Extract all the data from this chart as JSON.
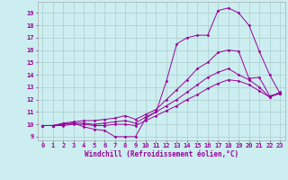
{
  "background_color": "#cceef0",
  "grid_color": "#aacccc",
  "line_color": "#990099",
  "marker_color": "#990099",
  "xlabel": "Windchill (Refroidissement éolien,°C)",
  "ylabel_ticks": [
    9,
    10,
    11,
    12,
    13,
    14,
    15,
    16,
    17,
    18,
    19
  ],
  "xlabel_ticks": [
    0,
    1,
    2,
    3,
    4,
    5,
    6,
    7,
    8,
    9,
    10,
    11,
    12,
    13,
    14,
    15,
    16,
    17,
    18,
    19,
    20,
    21,
    22,
    23
  ],
  "xlim": [
    -0.5,
    23.5
  ],
  "ylim": [
    8.7,
    19.9
  ],
  "curves": [
    {
      "x": [
        0,
        1,
        2,
        3,
        4,
        5,
        6,
        7,
        8,
        9,
        10,
        11,
        12,
        13,
        14,
        15,
        16,
        17,
        18,
        19,
        20,
        21,
        22,
        23
      ],
      "y": [
        9.9,
        9.9,
        10.0,
        10.1,
        9.8,
        9.6,
        9.5,
        9.0,
        9.0,
        9.0,
        10.5,
        11.0,
        13.5,
        16.5,
        17.0,
        17.2,
        17.2,
        19.2,
        19.4,
        19.0,
        18.0,
        15.9,
        14.0,
        12.5
      ]
    },
    {
      "x": [
        0,
        1,
        2,
        3,
        4,
        5,
        6,
        7,
        8,
        9,
        10,
        11,
        12,
        13,
        14,
        15,
        16,
        17,
        18,
        19,
        20,
        21,
        22,
        23
      ],
      "y": [
        9.9,
        9.9,
        10.1,
        10.2,
        10.3,
        10.3,
        10.4,
        10.5,
        10.7,
        10.4,
        10.8,
        11.2,
        12.0,
        12.8,
        13.6,
        14.5,
        15.0,
        15.8,
        16.0,
        15.9,
        13.7,
        13.8,
        12.3,
        12.5
      ]
    },
    {
      "x": [
        0,
        1,
        2,
        3,
        4,
        5,
        6,
        7,
        8,
        9,
        10,
        11,
        12,
        13,
        14,
        15,
        16,
        17,
        18,
        19,
        20,
        21,
        22,
        23
      ],
      "y": [
        9.9,
        9.9,
        10.0,
        10.1,
        10.1,
        10.0,
        10.1,
        10.2,
        10.3,
        10.1,
        10.6,
        11.0,
        11.5,
        12.0,
        12.6,
        13.2,
        13.8,
        14.2,
        14.5,
        14.0,
        13.6,
        13.0,
        12.2,
        12.6
      ]
    },
    {
      "x": [
        0,
        1,
        2,
        3,
        4,
        5,
        6,
        7,
        8,
        9,
        10,
        11,
        12,
        13,
        14,
        15,
        16,
        17,
        18,
        19,
        20,
        21,
        22,
        23
      ],
      "y": [
        9.9,
        9.9,
        9.9,
        10.0,
        10.0,
        9.9,
        9.9,
        10.0,
        10.0,
        9.9,
        10.3,
        10.7,
        11.1,
        11.5,
        12.0,
        12.4,
        12.9,
        13.3,
        13.6,
        13.5,
        13.2,
        12.7,
        12.2,
        12.5
      ]
    }
  ],
  "tick_fontsize": 5.0,
  "axis_fontsize": 5.5
}
